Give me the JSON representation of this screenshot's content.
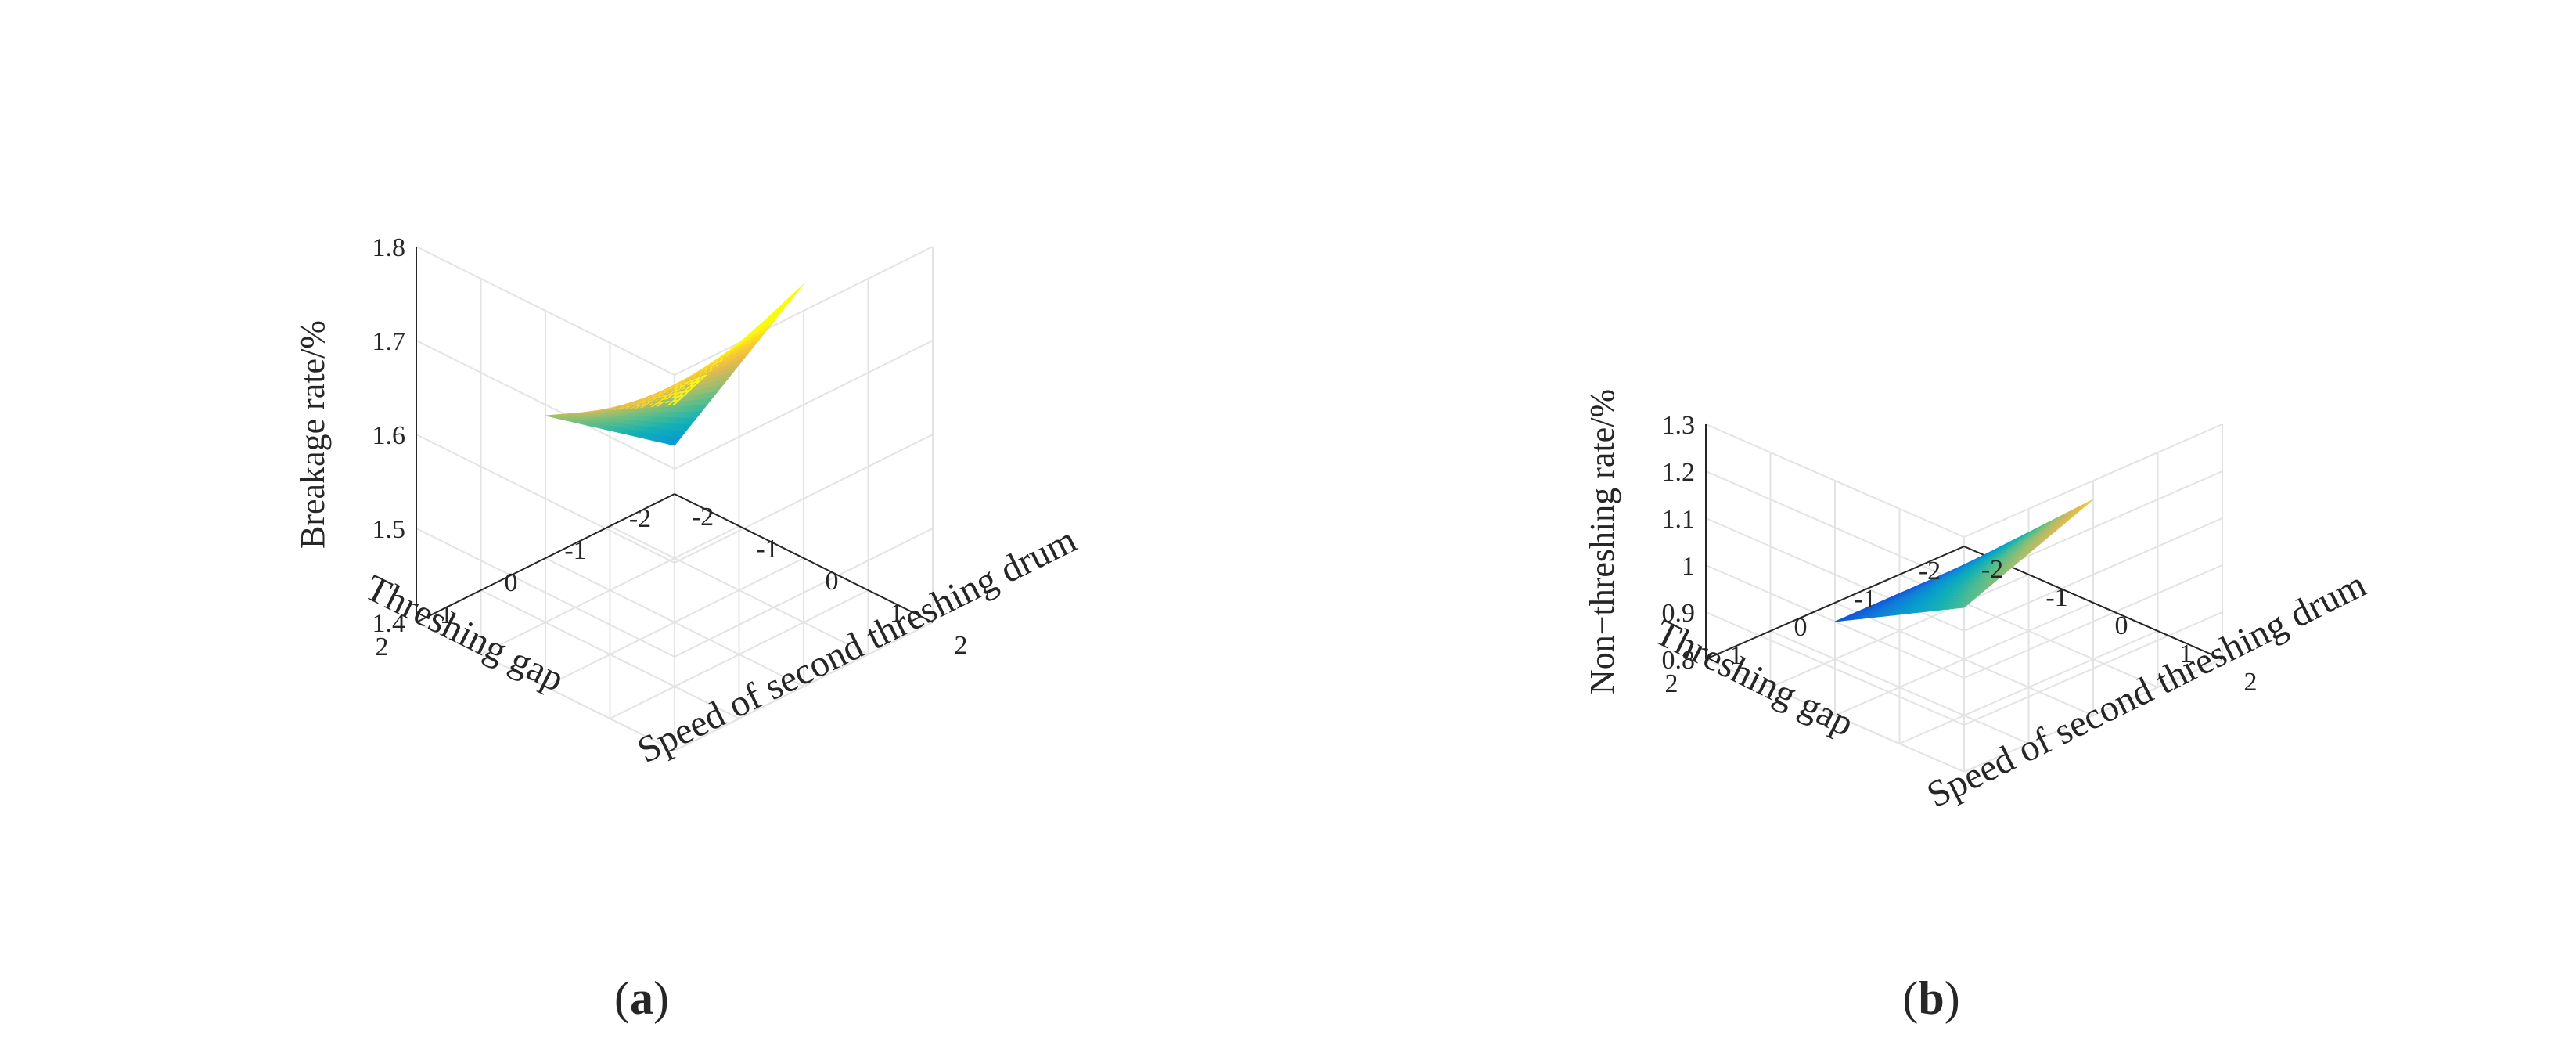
{
  "figure_labels": {
    "a": "(a)",
    "b": "(b)"
  },
  "chart_data": [
    {
      "type": "surface",
      "panel": "a",
      "xlabel": "Threshing gap",
      "ylabel": "Speed of second threshing drum",
      "zlabel": "Breakage rate/%",
      "x_ticks": [
        "-2",
        "-1",
        "0",
        "1",
        "2"
      ],
      "y_ticks": [
        "-2",
        "-1",
        "0",
        "1",
        "2"
      ],
      "z_ticks": [
        "1.4",
        "1.5",
        "1.6",
        "1.7",
        "1.8"
      ],
      "xlim": [
        -2,
        2
      ],
      "ylim": [
        -2,
        2
      ],
      "zlim": [
        1.4,
        1.8
      ],
      "grid": true,
      "surface_range": [
        -1,
        1
      ],
      "corner_values": {
        "x_neg_y_neg": 1.52,
        "x_pos_y_neg": 1.62,
        "x_pos_y_pos": 1.7,
        "x_neg_y_pos": 1.76
      },
      "colormap": "parula"
    },
    {
      "type": "surface",
      "panel": "b",
      "xlabel": "Threshing gap",
      "ylabel": "Speed of second threshing drum",
      "zlabel": "Non−threshing rate/%",
      "x_ticks": [
        "-2",
        "-1",
        "0",
        "1",
        "2"
      ],
      "y_ticks": [
        "-2",
        "-1",
        "0",
        "1",
        "2"
      ],
      "z_ticks": [
        "0.8",
        "0.9",
        "1",
        "1.1",
        "1.2",
        "1.3"
      ],
      "xlim": [
        -2,
        2
      ],
      "ylim": [
        -2,
        2
      ],
      "zlim": [
        0.8,
        1.3
      ],
      "grid": true,
      "surface_range": [
        -1,
        1
      ],
      "corner_values": {
        "x_neg_y_neg": 0.88,
        "x_pos_y_neg": 0.88,
        "x_pos_y_pos": 1.03,
        "x_neg_y_pos": 1.14
      },
      "colormap": "parula"
    }
  ]
}
